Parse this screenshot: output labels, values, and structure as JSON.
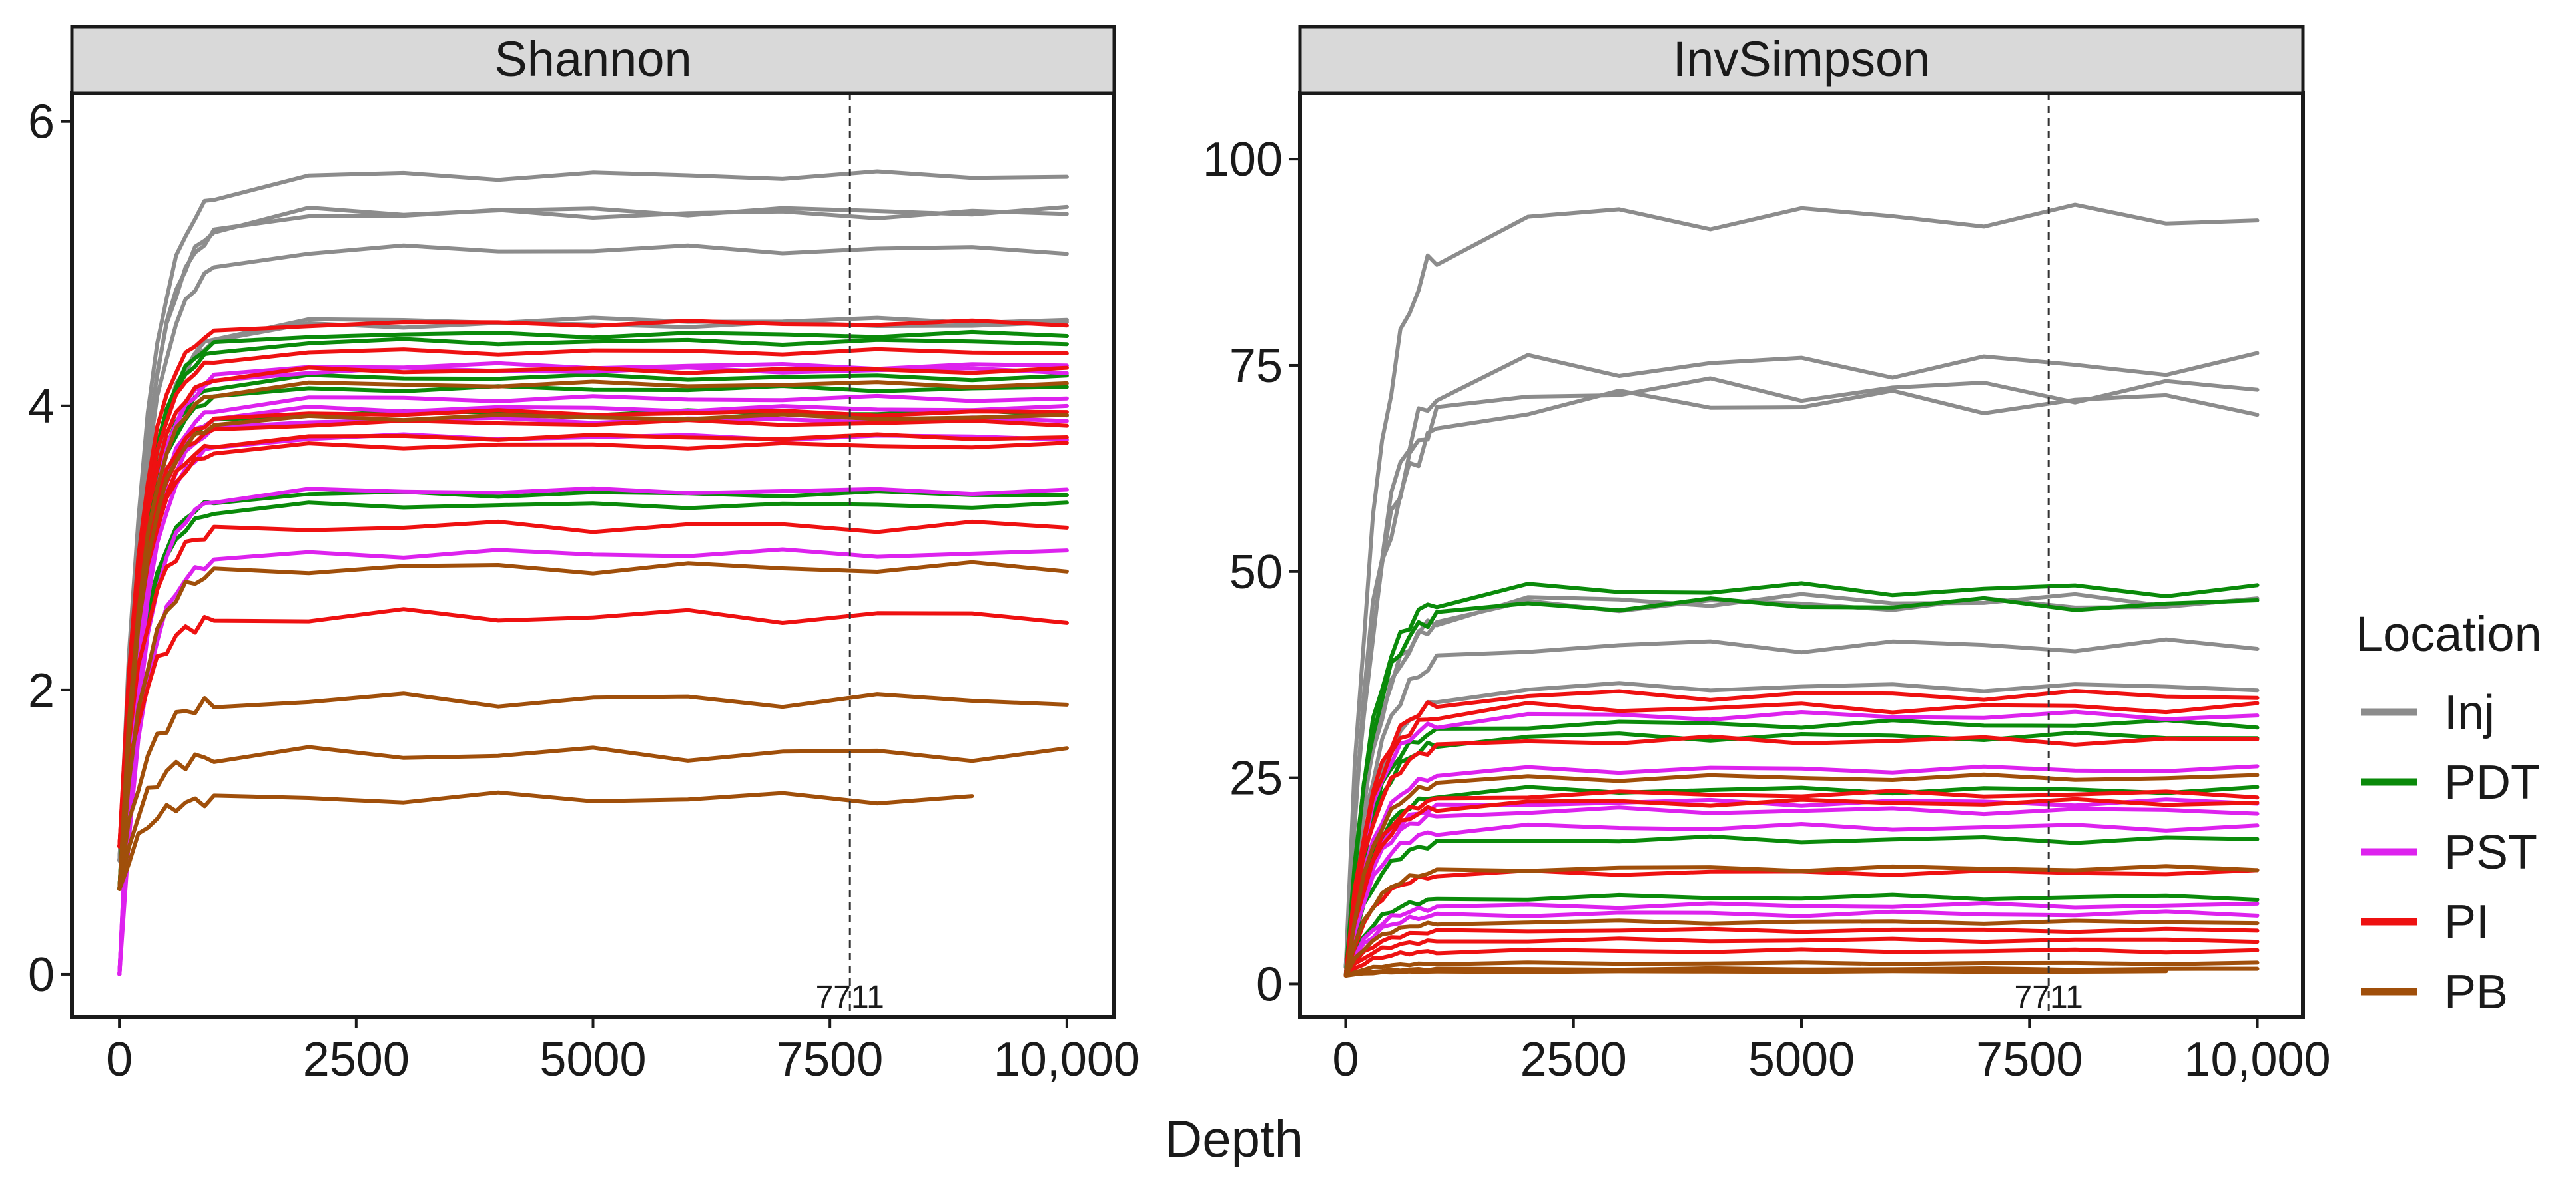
{
  "chart_data": {
    "type": "line",
    "xlabel": "Depth",
    "legend": {
      "title": "Location",
      "position": "right",
      "entries": [
        {
          "name": "Inj",
          "color": "#8c8c8c"
        },
        {
          "name": "PDT",
          "color": "#0a8a0a"
        },
        {
          "name": "PST",
          "color": "#dd22ee"
        },
        {
          "name": "PI",
          "color": "#ee1111"
        },
        {
          "name": "PB",
          "color": "#a04f0a"
        }
      ]
    },
    "reference_line": {
      "x": 7711,
      "label": "7711"
    },
    "x_ticks": [
      0,
      2500,
      5000,
      7500,
      10000
    ],
    "x_tick_labels": [
      "0",
      "2500",
      "5000",
      "7500",
      "10,000"
    ],
    "x_points": [
      1,
      100,
      200,
      300,
      400,
      500,
      600,
      700,
      800,
      900,
      1000,
      2000,
      3000,
      4000,
      5000,
      6000,
      7000,
      8000,
      9000,
      10000
    ],
    "panels": [
      {
        "title": "Shannon",
        "xlim": [
          -500,
          10500
        ],
        "ylim": [
          -0.3,
          6.2
        ],
        "y_ticks": [
          0,
          2,
          4,
          6
        ],
        "y_tick_labels": [
          "0",
          "2",
          "4",
          "6"
        ],
        "series": [
          {
            "group": "Inj",
            "plateau": 5.62,
            "start": 0.8,
            "k": 3.5,
            "wiggle": 0.03
          },
          {
            "group": "Inj",
            "plateau": 5.37,
            "start": 0.8,
            "k": 3.5,
            "wiggle": 0.03
          },
          {
            "group": "Inj",
            "plateau": 5.35,
            "start": 0.8,
            "k": 3.5,
            "wiggle": 0.03
          },
          {
            "group": "Inj",
            "plateau": 5.1,
            "start": 0.8,
            "k": 3.5,
            "wiggle": 0.03
          },
          {
            "group": "Inj",
            "plateau": 4.6,
            "start": 0.8,
            "k": 3.5,
            "wiggle": 0.02
          },
          {
            "group": "Inj",
            "plateau": 4.57,
            "start": 0.8,
            "k": 3.5,
            "wiggle": 0.02
          },
          {
            "group": "PDT",
            "plateau": 4.5,
            "start": 0.6,
            "k": 4,
            "wiggle": 0.02
          },
          {
            "group": "PDT",
            "plateau": 4.45,
            "start": 0.6,
            "k": 4,
            "wiggle": 0.02
          },
          {
            "group": "PDT",
            "plateau": 4.2,
            "start": 0.6,
            "k": 4,
            "wiggle": 0.02
          },
          {
            "group": "PDT",
            "plateau": 4.12,
            "start": 0.6,
            "k": 4,
            "wiggle": 0.02
          },
          {
            "group": "PDT",
            "plateau": 3.95,
            "start": 0.6,
            "k": 4,
            "wiggle": 0.02
          },
          {
            "group": "PDT",
            "plateau": 3.38,
            "start": 0.6,
            "k": 4,
            "wiggle": 0.02
          },
          {
            "group": "PDT",
            "plateau": 3.3,
            "start": 0.6,
            "k": 4,
            "wiggle": 0.02
          },
          {
            "group": "PST",
            "plateau": 4.28,
            "start": 0.0,
            "k": 4,
            "wiggle": 0.02
          },
          {
            "group": "PST",
            "plateau": 4.25,
            "start": 0.0,
            "k": 4,
            "wiggle": 0.02
          },
          {
            "group": "PST",
            "plateau": 4.05,
            "start": 0.0,
            "k": 4,
            "wiggle": 0.02
          },
          {
            "group": "PST",
            "plateau": 3.98,
            "start": 0.0,
            "k": 4,
            "wiggle": 0.02
          },
          {
            "group": "PST",
            "plateau": 3.9,
            "start": 0.0,
            "k": 4,
            "wiggle": 0.02
          },
          {
            "group": "PST",
            "plateau": 3.78,
            "start": 0.0,
            "k": 4,
            "wiggle": 0.02
          },
          {
            "group": "PST",
            "plateau": 3.4,
            "start": 0.0,
            "k": 4,
            "wiggle": 0.02
          },
          {
            "group": "PST",
            "plateau": 2.96,
            "start": 0.0,
            "k": 4,
            "wiggle": 0.03
          },
          {
            "group": "PI",
            "plateau": 4.58,
            "start": 0.9,
            "k": 4,
            "wiggle": 0.02
          },
          {
            "group": "PI",
            "plateau": 4.38,
            "start": 0.9,
            "k": 4,
            "wiggle": 0.02
          },
          {
            "group": "PI",
            "plateau": 4.25,
            "start": 0.9,
            "k": 4,
            "wiggle": 0.02
          },
          {
            "group": "PI",
            "plateau": 3.95,
            "start": 0.9,
            "k": 4,
            "wiggle": 0.02
          },
          {
            "group": "PI",
            "plateau": 3.88,
            "start": 0.9,
            "k": 4,
            "wiggle": 0.02
          },
          {
            "group": "PI",
            "plateau": 3.78,
            "start": 0.9,
            "k": 4,
            "wiggle": 0.02
          },
          {
            "group": "PI",
            "plateau": 3.72,
            "start": 0.9,
            "k": 4,
            "wiggle": 0.02
          },
          {
            "group": "PI",
            "plateau": 3.15,
            "start": 0.9,
            "k": 4,
            "wiggle": 0.04
          },
          {
            "group": "PI",
            "plateau": 2.52,
            "start": 0.9,
            "k": 4,
            "wiggle": 0.05
          },
          {
            "group": "PB",
            "plateau": 4.15,
            "start": 0.6,
            "k": 4,
            "wiggle": 0.02
          },
          {
            "group": "PB",
            "plateau": 3.92,
            "start": 0.6,
            "k": 4,
            "wiggle": 0.02
          },
          {
            "group": "PB",
            "plateau": 2.86,
            "start": 0.6,
            "k": 4,
            "wiggle": 0.04
          },
          {
            "group": "PB",
            "plateau": 1.93,
            "start": 0.6,
            "k": 4,
            "wiggle": 0.05
          },
          {
            "group": "PB",
            "plateau": 1.55,
            "start": 0.6,
            "k": 4,
            "wiggle": 0.05
          },
          {
            "group": "PB",
            "plateau": 1.24,
            "start": 0.6,
            "k": 4,
            "wiggle": 0.04,
            "xmax": 9000
          }
        ]
      },
      {
        "title": "InvSimpson",
        "xlim": [
          -500,
          10500
        ],
        "ylim": [
          -4,
          108
        ],
        "y_ticks": [
          0,
          25,
          50,
          75,
          100
        ],
        "y_tick_labels": [
          "0",
          "25",
          "50",
          "75",
          "100"
        ],
        "series": [
          {
            "group": "Inj",
            "plateau": 93,
            "start": 2,
            "k": 3,
            "wiggle": 1.5
          },
          {
            "group": "Inj",
            "plateau": 75,
            "start": 2,
            "k": 3,
            "wiggle": 1.5
          },
          {
            "group": "Inj",
            "plateau": 72,
            "start": 2,
            "k": 3,
            "wiggle": 1.5
          },
          {
            "group": "Inj",
            "plateau": 70.5,
            "start": 2,
            "k": 3,
            "wiggle": 1.5
          },
          {
            "group": "Inj",
            "plateau": 46.5,
            "start": 2,
            "k": 3,
            "wiggle": 0.8
          },
          {
            "group": "Inj",
            "plateau": 46,
            "start": 2,
            "k": 3,
            "wiggle": 0.8
          },
          {
            "group": "Inj",
            "plateau": 41,
            "start": 2,
            "k": 3,
            "wiggle": 0.8
          },
          {
            "group": "Inj",
            "plateau": 36,
            "start": 2,
            "k": 3,
            "wiggle": 0.5
          },
          {
            "group": "PDT",
            "plateau": 47.8,
            "start": 1,
            "k": 3.5,
            "wiggle": 0.8
          },
          {
            "group": "PDT",
            "plateau": 46,
            "start": 1,
            "k": 3.5,
            "wiggle": 0.8
          },
          {
            "group": "PDT",
            "plateau": 31.5,
            "start": 1,
            "k": 3.5,
            "wiggle": 0.5
          },
          {
            "group": "PDT",
            "plateau": 30,
            "start": 1,
            "k": 3.5,
            "wiggle": 0.5
          },
          {
            "group": "PDT",
            "plateau": 23.5,
            "start": 1,
            "k": 3.5,
            "wiggle": 0.4
          },
          {
            "group": "PDT",
            "plateau": 17.5,
            "start": 1,
            "k": 3.5,
            "wiggle": 0.4
          },
          {
            "group": "PDT",
            "plateau": 10.5,
            "start": 1,
            "k": 3.5,
            "wiggle": 0.3
          },
          {
            "group": "PST",
            "plateau": 32.5,
            "start": 1,
            "k": 3.5,
            "wiggle": 0.5
          },
          {
            "group": "PST",
            "plateau": 26,
            "start": 1,
            "k": 3.5,
            "wiggle": 0.4
          },
          {
            "group": "PST",
            "plateau": 22,
            "start": 1,
            "k": 3.5,
            "wiggle": 0.4
          },
          {
            "group": "PST",
            "plateau": 21,
            "start": 1,
            "k": 3.5,
            "wiggle": 0.4
          },
          {
            "group": "PST",
            "plateau": 19,
            "start": 1,
            "k": 3.5,
            "wiggle": 0.4
          },
          {
            "group": "PST",
            "plateau": 9.5,
            "start": 1,
            "k": 3.5,
            "wiggle": 0.3
          },
          {
            "group": "PST",
            "plateau": 8.5,
            "start": 1,
            "k": 3.5,
            "wiggle": 0.3
          },
          {
            "group": "PI",
            "plateau": 35,
            "start": 1,
            "k": 3.5,
            "wiggle": 0.6
          },
          {
            "group": "PI",
            "plateau": 33.5,
            "start": 1,
            "k": 3.5,
            "wiggle": 0.6
          },
          {
            "group": "PI",
            "plateau": 29.5,
            "start": 1,
            "k": 3.5,
            "wiggle": 0.5
          },
          {
            "group": "PI",
            "plateau": 23,
            "start": 1,
            "k": 3.5,
            "wiggle": 0.4
          },
          {
            "group": "PI",
            "plateau": 22,
            "start": 1,
            "k": 3.5,
            "wiggle": 0.4
          },
          {
            "group": "PI",
            "plateau": 13.5,
            "start": 1,
            "k": 3.5,
            "wiggle": 0.3
          },
          {
            "group": "PI",
            "plateau": 6.5,
            "start": 1,
            "k": 3.5,
            "wiggle": 0.2
          },
          {
            "group": "PI",
            "plateau": 5.3,
            "start": 1,
            "k": 3.5,
            "wiggle": 0.2
          },
          {
            "group": "PI",
            "plateau": 4,
            "start": 1,
            "k": 3.5,
            "wiggle": 0.2
          },
          {
            "group": "PB",
            "plateau": 25,
            "start": 1,
            "k": 3.5,
            "wiggle": 0.4
          },
          {
            "group": "PB",
            "plateau": 14,
            "start": 1,
            "k": 3.5,
            "wiggle": 0.3
          },
          {
            "group": "PB",
            "plateau": 7.5,
            "start": 1,
            "k": 3.5,
            "wiggle": 0.2
          },
          {
            "group": "PB",
            "plateau": 2.5,
            "start": 1,
            "k": 3.5,
            "wiggle": 0.1
          },
          {
            "group": "PB",
            "plateau": 1.8,
            "start": 1,
            "k": 3.5,
            "wiggle": 0.1
          },
          {
            "group": "PB",
            "plateau": 1.5,
            "start": 1,
            "k": 3.5,
            "wiggle": 0.05,
            "xmax": 9000
          }
        ]
      }
    ]
  }
}
